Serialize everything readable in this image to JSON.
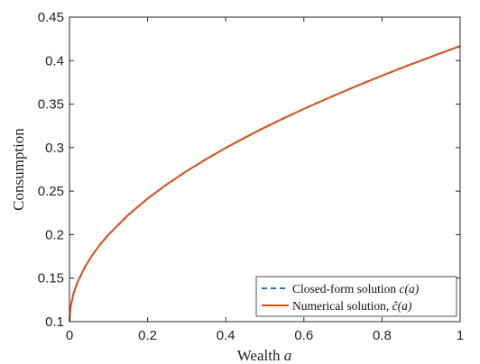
{
  "chart_data": {
    "type": "line",
    "xlabel": "Wealth ",
    "xlabel_var": "a",
    "ylabel": "Consumption",
    "xlim": [
      0,
      1
    ],
    "ylim": [
      0.1,
      0.45
    ],
    "xticks": [
      0,
      0.2,
      0.4,
      0.6,
      0.8,
      1
    ],
    "xtick_labels": [
      "0",
      "0.2",
      "0.4",
      "0.6",
      "0.8",
      "1"
    ],
    "yticks": [
      0.1,
      0.15,
      0.2,
      0.25,
      0.3,
      0.35,
      0.4,
      0.45
    ],
    "ytick_labels": [
      "0.1",
      "0.15",
      "0.2",
      "0.25",
      "0.3",
      "0.35",
      "0.4",
      "0.45"
    ],
    "grid": false,
    "legend_position": "bottom-right",
    "series": [
      {
        "name": "Closed-form solution c(a)",
        "color": "#1f77c4",
        "style": "dashed",
        "x": [
          0,
          0.0025,
          0.01,
          0.02,
          0.04,
          0.06,
          0.08,
          0.1,
          0.15,
          0.2,
          0.25,
          0.3,
          0.35,
          0.4,
          0.45,
          0.5,
          0.55,
          0.6,
          0.65,
          0.7,
          0.75,
          0.8,
          0.85,
          0.9,
          0.95,
          1
        ],
        "y": [
          0.1,
          0.1158,
          0.1316,
          0.1447,
          0.1632,
          0.1775,
          0.1895,
          0.2,
          0.2225,
          0.2414,
          0.258,
          0.273,
          0.2868,
          0.2997,
          0.3117,
          0.3232,
          0.3341,
          0.3445,
          0.3545,
          0.3642,
          0.3736,
          0.3827,
          0.3915,
          0.4001,
          0.4085,
          0.4167
        ]
      },
      {
        "name": "Numerical solution, ĉ(a)",
        "color": "#d95319",
        "style": "solid",
        "x": [
          0,
          0.0025,
          0.01,
          0.02,
          0.04,
          0.06,
          0.08,
          0.1,
          0.15,
          0.2,
          0.25,
          0.3,
          0.35,
          0.4,
          0.45,
          0.5,
          0.55,
          0.6,
          0.65,
          0.7,
          0.75,
          0.8,
          0.85,
          0.9,
          0.95,
          1
        ],
        "y": [
          0.1,
          0.1158,
          0.1316,
          0.1447,
          0.1632,
          0.1775,
          0.1895,
          0.2,
          0.2225,
          0.2414,
          0.258,
          0.273,
          0.2868,
          0.2997,
          0.3117,
          0.3232,
          0.3341,
          0.3445,
          0.3545,
          0.3642,
          0.3736,
          0.3827,
          0.3915,
          0.4001,
          0.4085,
          0.4167
        ]
      }
    ],
    "legend": {
      "entries": [
        {
          "label_text": "Closed-form solution ",
          "label_math": "c(a)"
        },
        {
          "label_text": "Numerical solution, ",
          "label_math": "ĉ(a)"
        }
      ]
    }
  }
}
